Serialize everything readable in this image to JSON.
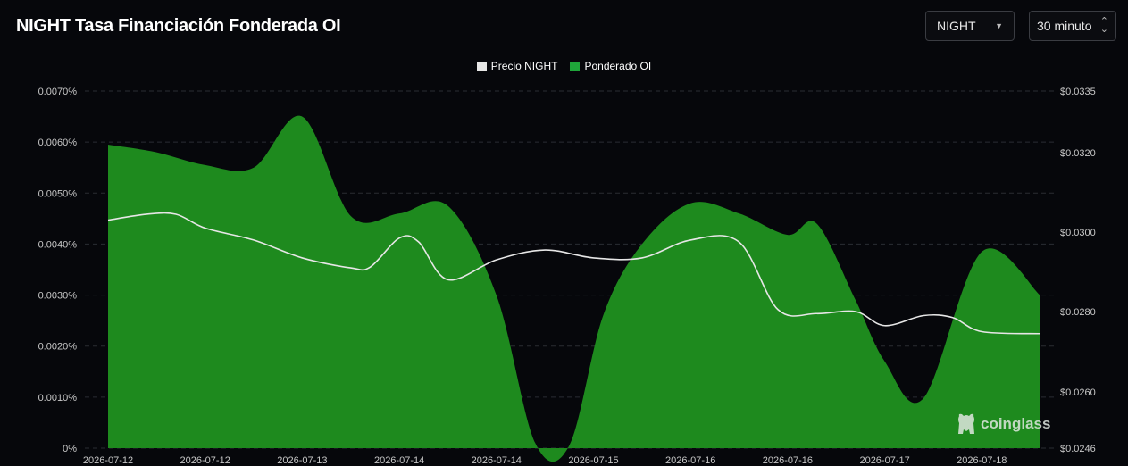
{
  "header": {
    "title": "NIGHT Tasa Financiación Fonderada OI",
    "asset_select": "NIGHT",
    "interval_select": "30 minuto"
  },
  "watermark": {
    "text": "coinglass",
    "icon": "coinglass-logo-icon"
  },
  "colors": {
    "background": "#06070b",
    "oi_fill": "#1e8a1e",
    "price_line": "#e6e6e6",
    "price_swatch": "#e6e6e6",
    "oi_swatch": "#1fa53a"
  },
  "chart_data": {
    "type": "area",
    "legend": [
      "Precio NIGHT",
      "Ponderado OI"
    ],
    "legend_position": "top-center",
    "grid": true,
    "x_tick_labels": [
      "2026-07-12",
      "2026-07-12",
      "2026-07-13",
      "2026-07-14",
      "2026-07-14",
      "2026-07-15",
      "2026-07-16",
      "2026-07-16",
      "2026-07-17",
      "2026-07-18"
    ],
    "y_left": {
      "ticks": [
        "0%",
        "0.0010%",
        "0.0020%",
        "0.0030%",
        "0.0040%",
        "0.0050%",
        "0.0060%",
        "0.0070%"
      ],
      "range": [
        0,
        0.007
      ]
    },
    "y_right": {
      "ticks": [
        "$0.0246",
        "$0.0260",
        "$0.0280",
        "$0.0300",
        "$0.0320",
        "$0.0335"
      ],
      "range": [
        0.0246,
        0.0335
      ]
    },
    "series": [
      {
        "name": "Ponderado OI",
        "axis": "left",
        "kind": "area",
        "x": [
          0,
          0.5,
          1,
          1.5,
          2,
          2.5,
          3,
          3.5,
          4,
          4.4,
          4.75,
          5.1,
          5.5,
          6,
          6.5,
          7,
          7.3,
          7.7,
          8,
          8.4,
          9,
          9.6
        ],
        "values": [
          0.00595,
          0.0058,
          0.00555,
          0.0055,
          0.0065,
          0.00455,
          0.0046,
          0.00475,
          0.003,
          0.0001,
          5e-05,
          0.0026,
          0.004,
          0.0048,
          0.0046,
          0.00418,
          0.0044,
          0.0029,
          0.0017,
          0.00098,
          0.00385,
          0.003
        ]
      },
      {
        "name": "Precio NIGHT",
        "axis": "right",
        "kind": "line",
        "x": [
          0,
          0.4,
          0.7,
          1,
          1.5,
          2,
          2.5,
          2.7,
          3,
          3.2,
          3.5,
          4,
          4.5,
          5,
          5.5,
          6,
          6.5,
          6.9,
          7.3,
          7.7,
          8,
          8.4,
          8.7,
          9,
          9.6
        ],
        "values": [
          0.0303,
          0.03045,
          0.03045,
          0.0301,
          0.0298,
          0.02935,
          0.0291,
          0.02912,
          0.02985,
          0.02975,
          0.0288,
          0.0293,
          0.02955,
          0.02935,
          0.02935,
          0.0298,
          0.02975,
          0.02805,
          0.02795,
          0.028,
          0.02765,
          0.0279,
          0.02785,
          0.0275,
          0.02745
        ]
      }
    ]
  }
}
